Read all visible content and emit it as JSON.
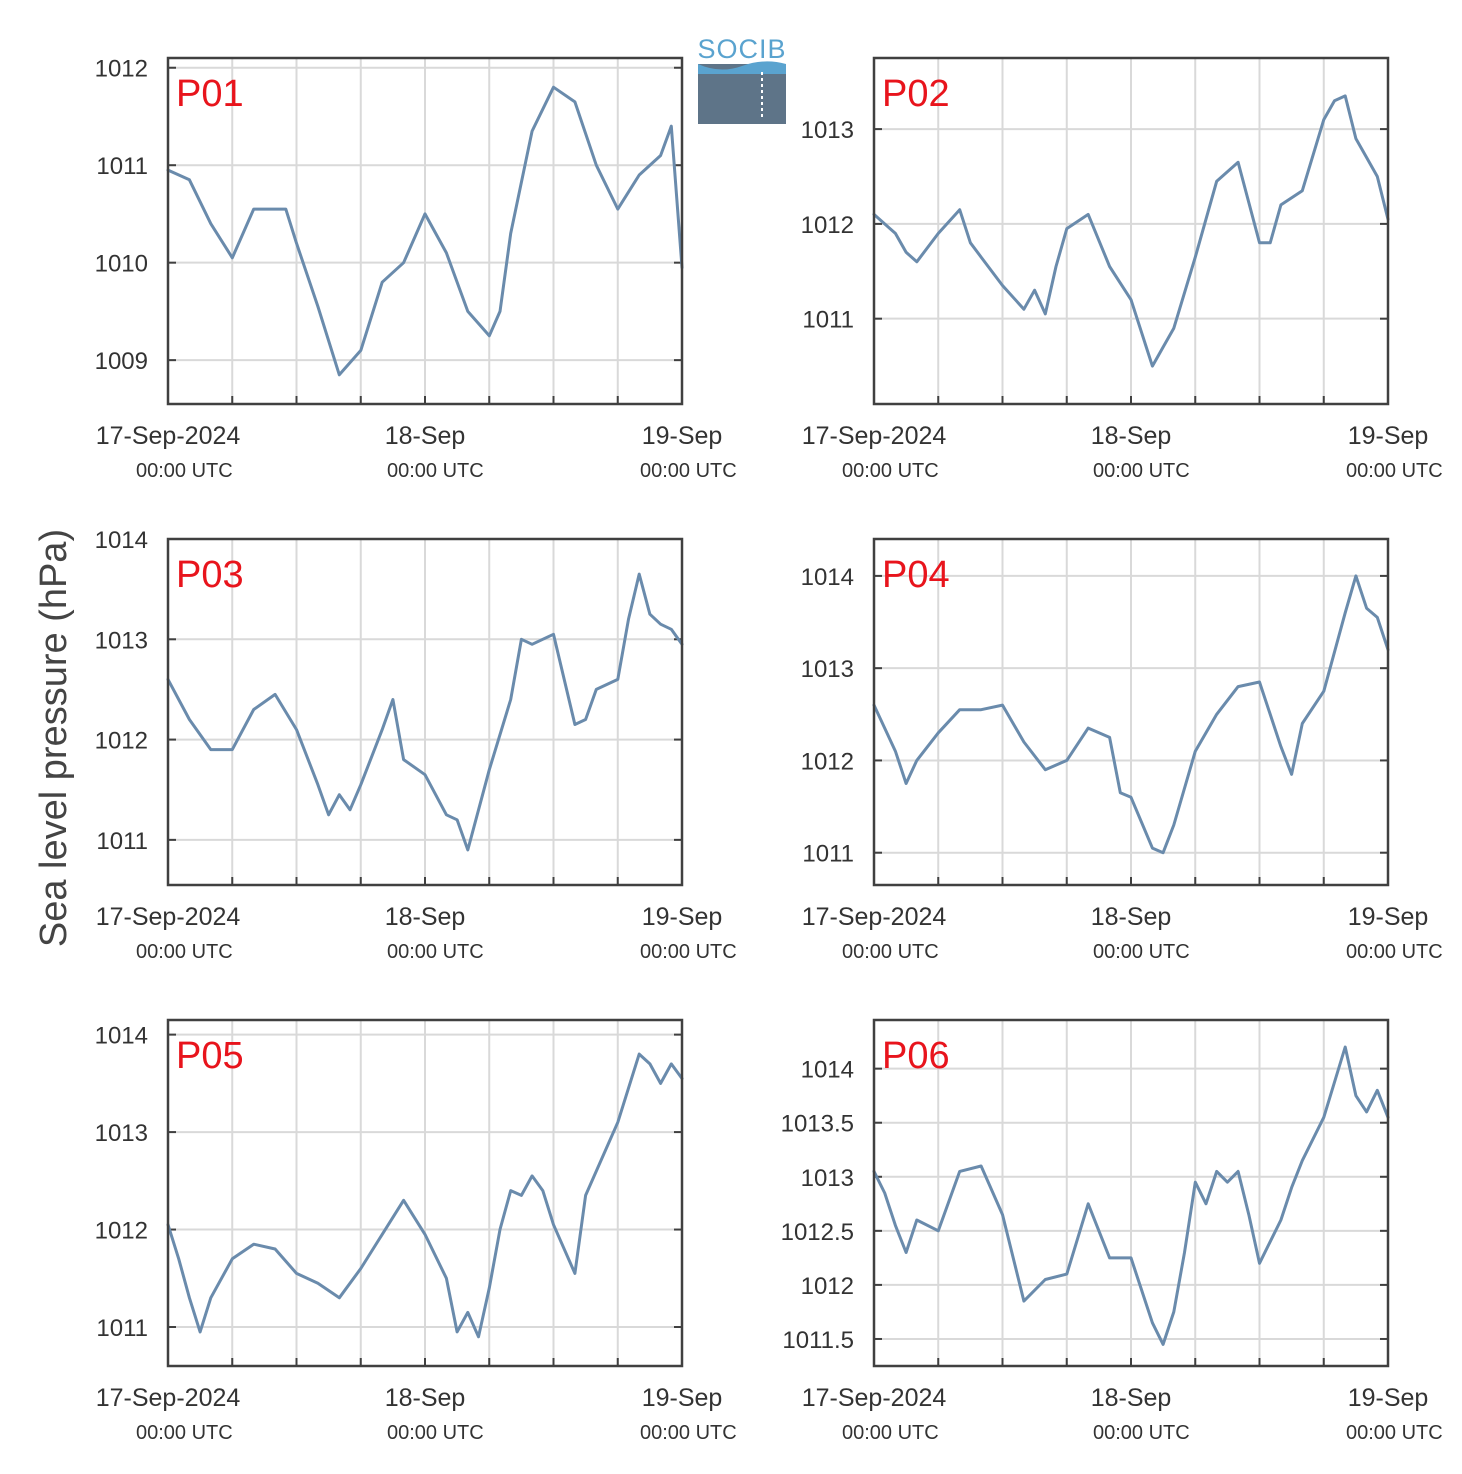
{
  "logo": {
    "text": "SOCIB",
    "name": "socib-logo"
  },
  "ylabel": "Sea level pressure (hPa)",
  "colors": {
    "series": "#6a8bac",
    "panel_label": "#e8141c",
    "grid": "#d9d9d9",
    "frame": "#404040"
  },
  "chart_data": [
    {
      "type": "line",
      "panel_label": "P01",
      "x_start": "17-Sep-2024 00:00 UTC",
      "x_end": "19-Sep-2024 00:00 UTC",
      "xticks": [
        {
          "label": "17-Sep-2024",
          "sub": "00:00 UTC"
        },
        {
          "label": "18-Sep",
          "sub": "00:00 UTC"
        },
        {
          "label": "19-Sep",
          "sub": "00:00 UTC"
        }
      ],
      "yticks": [
        "1009",
        "1010",
        "1011",
        "1012"
      ],
      "ylim": [
        1008.55,
        1012.1
      ],
      "x_hours": [
        0,
        2,
        4,
        6,
        8,
        10,
        11,
        12,
        14,
        16,
        18,
        20,
        22,
        24,
        26,
        28,
        30,
        31,
        32,
        34,
        36,
        38,
        40,
        42,
        44,
        46,
        47,
        48
      ],
      "values": [
        1010.95,
        1010.85,
        1010.4,
        1010.05,
        1010.55,
        1010.55,
        1010.55,
        1010.2,
        1009.55,
        1008.85,
        1009.1,
        1009.8,
        1010.0,
        1010.5,
        1010.1,
        1009.5,
        1009.25,
        1009.5,
        1010.3,
        1011.35,
        1011.8,
        1011.65,
        1011.0,
        1010.55,
        1010.9,
        1011.1,
        1011.4,
        1009.95
      ]
    },
    {
      "type": "line",
      "panel_label": "P02",
      "x_start": "17-Sep-2024 00:00 UTC",
      "x_end": "19-Sep-2024 00:00 UTC",
      "xticks": [
        {
          "label": "17-Sep-2024",
          "sub": "00:00 UTC"
        },
        {
          "label": "18-Sep",
          "sub": "00:00 UTC"
        },
        {
          "label": "19-Sep",
          "sub": "00:00 UTC"
        }
      ],
      "yticks": [
        "1011",
        "1012",
        "1013"
      ],
      "ylim": [
        1010.1,
        1013.75
      ],
      "x_hours": [
        0,
        2,
        3,
        4,
        6,
        8,
        9,
        10,
        12,
        14,
        15,
        16,
        17,
        18,
        20,
        22,
        24,
        26,
        27,
        28,
        30,
        32,
        34,
        36,
        37,
        38,
        40,
        42,
        43,
        44,
        45,
        46,
        47,
        48
      ],
      "values": [
        1012.1,
        1011.9,
        1011.7,
        1011.6,
        1011.9,
        1012.15,
        1011.8,
        1011.65,
        1011.35,
        1011.1,
        1011.3,
        1011.05,
        1011.55,
        1011.95,
        1012.1,
        1011.55,
        1011.2,
        1010.5,
        1010.7,
        1010.9,
        1011.65,
        1012.45,
        1012.65,
        1011.8,
        1011.8,
        1012.2,
        1012.35,
        1013.1,
        1013.3,
        1013.35,
        1012.9,
        1012.7,
        1012.5,
        1012.05
      ]
    },
    {
      "type": "line",
      "panel_label": "P03",
      "x_start": "17-Sep-2024 00:00 UTC",
      "x_end": "19-Sep-2024 00:00 UTC",
      "xticks": [
        {
          "label": "17-Sep-2024",
          "sub": "00:00 UTC"
        },
        {
          "label": "18-Sep",
          "sub": "00:00 UTC"
        },
        {
          "label": "19-Sep",
          "sub": "00:00 UTC"
        }
      ],
      "yticks": [
        "1011",
        "1012",
        "1013",
        "1014"
      ],
      "ylim": [
        1010.55,
        1014.0
      ],
      "x_hours": [
        0,
        2,
        4,
        6,
        8,
        10,
        12,
        14,
        15,
        16,
        17,
        18,
        20,
        21,
        22,
        24,
        26,
        27,
        28,
        30,
        32,
        33,
        34,
        36,
        38,
        39,
        40,
        42,
        43,
        44,
        45,
        46,
        47,
        48
      ],
      "values": [
        1012.6,
        1012.2,
        1011.9,
        1011.9,
        1012.3,
        1012.45,
        1012.1,
        1011.55,
        1011.25,
        1011.45,
        1011.3,
        1011.55,
        1012.1,
        1012.4,
        1011.8,
        1011.65,
        1011.25,
        1011.2,
        1010.9,
        1011.7,
        1012.4,
        1013.0,
        1012.95,
        1013.05,
        1012.15,
        1012.2,
        1012.5,
        1012.6,
        1013.2,
        1013.65,
        1013.25,
        1013.15,
        1013.1,
        1012.95
      ]
    },
    {
      "type": "line",
      "panel_label": "P04",
      "x_start": "17-Sep-2024 00:00 UTC",
      "x_end": "19-Sep-2024 00:00 UTC",
      "xticks": [
        {
          "label": "17-Sep-2024",
          "sub": "00:00 UTC"
        },
        {
          "label": "18-Sep",
          "sub": "00:00 UTC"
        },
        {
          "label": "19-Sep",
          "sub": "00:00 UTC"
        }
      ],
      "yticks": [
        "1011",
        "1012",
        "1013",
        "1014"
      ],
      "ylim": [
        1010.65,
        1014.4
      ],
      "x_hours": [
        0,
        2,
        3,
        4,
        6,
        8,
        10,
        12,
        14,
        16,
        18,
        20,
        22,
        23,
        24,
        26,
        27,
        28,
        30,
        32,
        34,
        36,
        38,
        39,
        40,
        42,
        44,
        45,
        46,
        47,
        48
      ],
      "values": [
        1012.6,
        1012.1,
        1011.75,
        1012.0,
        1012.3,
        1012.55,
        1012.55,
        1012.6,
        1012.2,
        1011.9,
        1012.0,
        1012.35,
        1012.25,
        1011.65,
        1011.6,
        1011.05,
        1011.0,
        1011.3,
        1012.1,
        1012.5,
        1012.8,
        1012.85,
        1012.15,
        1011.85,
        1012.4,
        1012.75,
        1013.6,
        1014.0,
        1013.65,
        1013.55,
        1013.2
      ]
    },
    {
      "type": "line",
      "panel_label": "P05",
      "x_start": "17-Sep-2024 00:00 UTC",
      "x_end": "19-Sep-2024 00:00 UTC",
      "xticks": [
        {
          "label": "17-Sep-2024",
          "sub": "00:00 UTC"
        },
        {
          "label": "18-Sep",
          "sub": "00:00 UTC"
        },
        {
          "label": "19-Sep",
          "sub": "00:00 UTC"
        }
      ],
      "yticks": [
        "1011",
        "1012",
        "1013",
        "1014"
      ],
      "ylim": [
        1010.6,
        1014.15
      ],
      "x_hours": [
        0,
        1,
        2,
        3,
        4,
        6,
        8,
        10,
        12,
        14,
        16,
        18,
        20,
        22,
        24,
        26,
        27,
        28,
        29,
        30,
        31,
        32,
        33,
        34,
        35,
        36,
        38,
        39,
        40,
        42,
        44,
        45,
        46,
        47,
        48
      ],
      "values": [
        1012.05,
        1011.7,
        1011.3,
        1010.95,
        1011.3,
        1011.7,
        1011.85,
        1011.8,
        1011.55,
        1011.45,
        1011.3,
        1011.6,
        1011.95,
        1012.3,
        1011.95,
        1011.5,
        1010.95,
        1011.15,
        1010.9,
        1011.4,
        1012.0,
        1012.4,
        1012.35,
        1012.55,
        1012.4,
        1012.05,
        1011.55,
        1012.35,
        1012.6,
        1013.1,
        1013.8,
        1013.7,
        1013.5,
        1013.7,
        1013.55
      ]
    },
    {
      "type": "line",
      "panel_label": "P06",
      "x_start": "17-Sep-2024 00:00 UTC",
      "x_end": "19-Sep-2024 00:00 UTC",
      "xticks": [
        {
          "label": "17-Sep-2024",
          "sub": "00:00 UTC"
        },
        {
          "label": "18-Sep",
          "sub": "00:00 UTC"
        },
        {
          "label": "19-Sep",
          "sub": "00:00 UTC"
        }
      ],
      "yticks": [
        "1011.5",
        "1012",
        "1012.5",
        "1013",
        "1013.5",
        "1014"
      ],
      "ylim": [
        1011.25,
        1014.45
      ],
      "x_hours": [
        0,
        1,
        2,
        3,
        4,
        6,
        8,
        10,
        12,
        14,
        16,
        18,
        20,
        22,
        24,
        26,
        27,
        28,
        29,
        30,
        31,
        32,
        33,
        34,
        35,
        36,
        38,
        39,
        40,
        42,
        44,
        45,
        46,
        47,
        48
      ],
      "values": [
        1013.05,
        1012.85,
        1012.55,
        1012.3,
        1012.6,
        1012.5,
        1013.05,
        1013.1,
        1012.65,
        1011.85,
        1012.05,
        1012.1,
        1012.75,
        1012.25,
        1012.25,
        1011.65,
        1011.45,
        1011.75,
        1012.3,
        1012.95,
        1012.75,
        1013.05,
        1012.95,
        1013.05,
        1012.65,
        1012.2,
        1012.6,
        1012.9,
        1013.15,
        1013.55,
        1014.2,
        1013.75,
        1013.6,
        1013.8,
        1013.55
      ]
    }
  ]
}
